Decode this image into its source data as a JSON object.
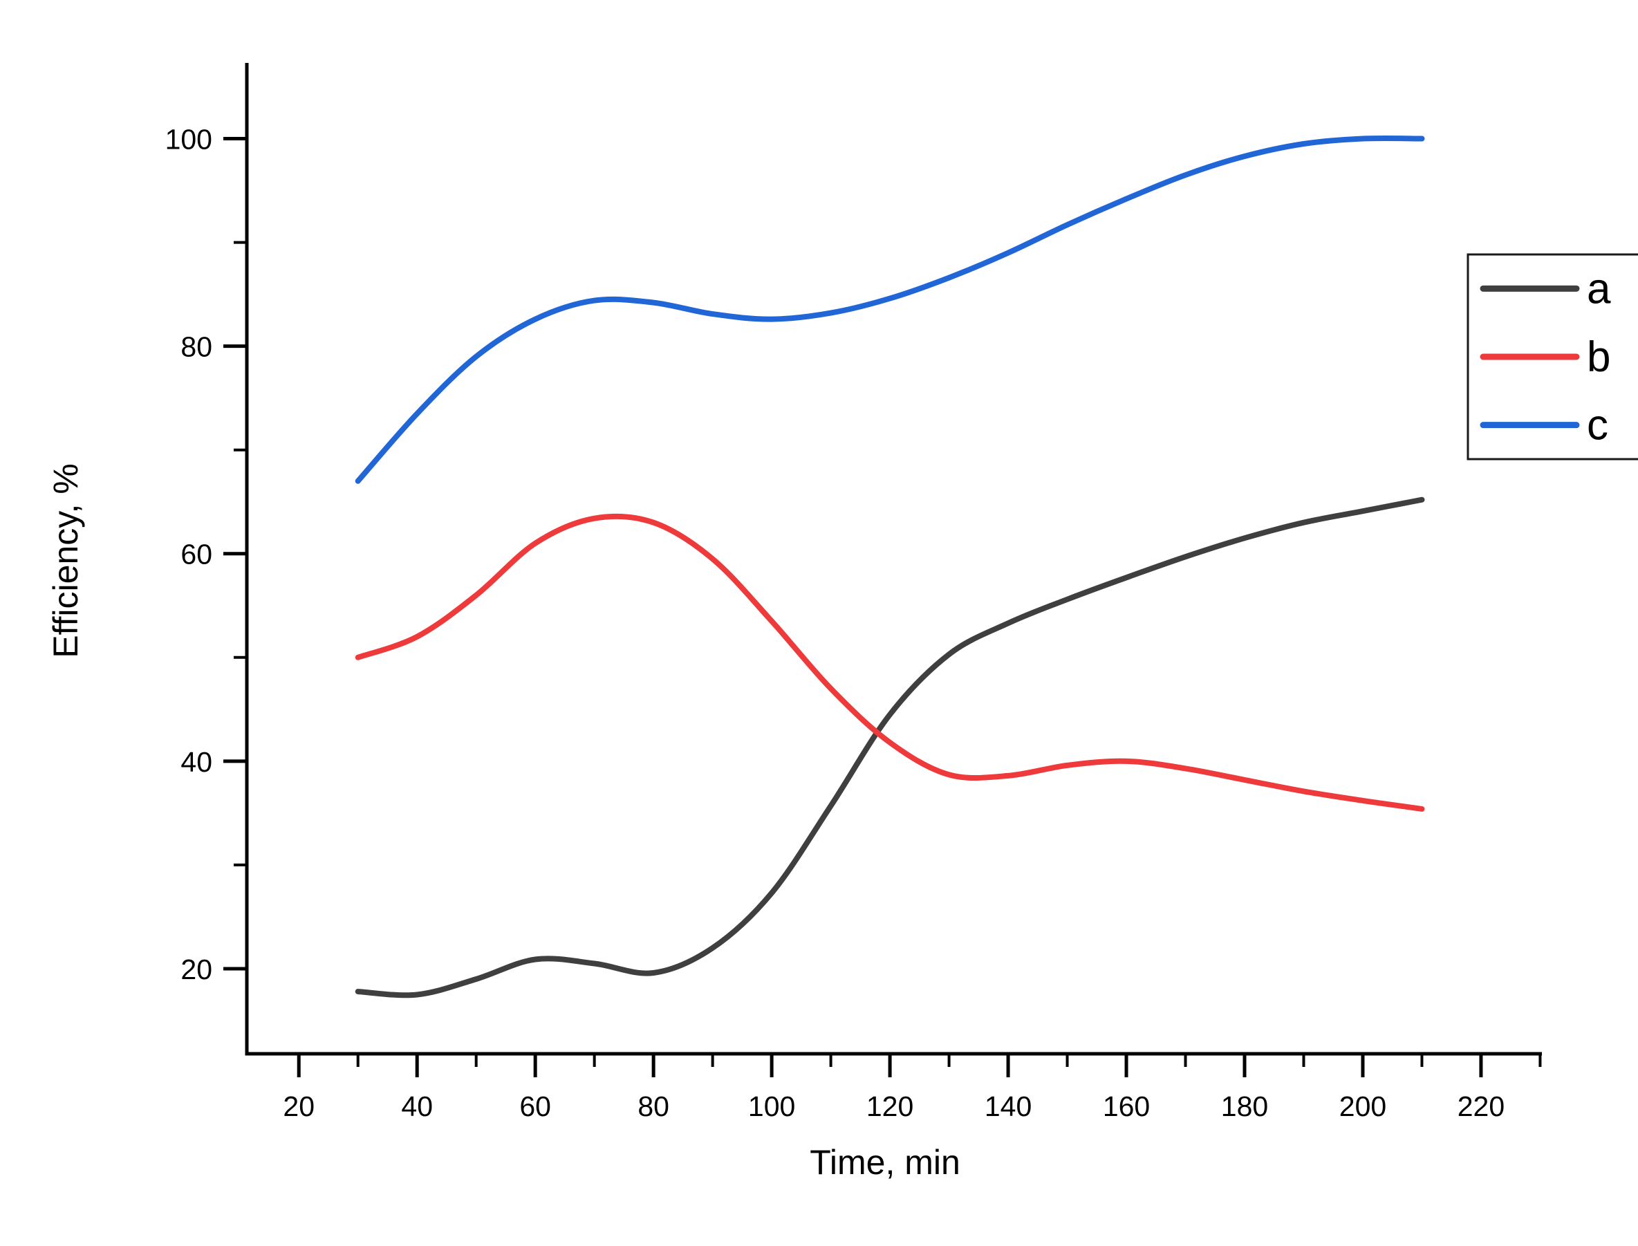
{
  "frame": {
    "background": "#ffffff",
    "axis_color": "#000000",
    "text_color": "#000000"
  },
  "chart_data": {
    "type": "line",
    "title": "",
    "xlabel": "Time, min",
    "ylabel": "Efficiency, %",
    "xlim": [
      11.2,
      230.3
    ],
    "ylim": [
      11.8,
      107.3
    ],
    "x_major_ticks": [
      20,
      40,
      60,
      80,
      100,
      120,
      140,
      160,
      180,
      200,
      220
    ],
    "x_minor_ticks": [
      30,
      50,
      70,
      90,
      110,
      130,
      150,
      170,
      190,
      210,
      230
    ],
    "y_major_ticks": [
      20,
      40,
      60,
      80,
      100
    ],
    "y_minor_ticks": [
      30,
      50,
      70,
      90
    ],
    "grid": false,
    "legend": {
      "position": "upper-right",
      "entries": [
        "a",
        "b",
        "c"
      ]
    },
    "x": [
      30,
      40,
      50,
      60,
      70,
      80,
      90,
      100,
      110,
      120,
      130,
      140,
      150,
      160,
      170,
      180,
      190,
      200,
      210
    ],
    "series": [
      {
        "name": "a",
        "color": "#3f3f3f",
        "values": [
          17.8,
          17.5,
          19.0,
          20.9,
          20.5,
          19.6,
          22.0,
          27.3,
          35.7,
          44.5,
          50.3,
          53.3,
          55.6,
          57.7,
          59.7,
          61.5,
          63.0,
          64.1,
          65.2
        ]
      },
      {
        "name": "b",
        "color": "#ee3a3b",
        "values": [
          50.0,
          52.0,
          56.0,
          61.0,
          63.4,
          63.0,
          59.5,
          53.5,
          47.0,
          41.8,
          38.7,
          38.6,
          39.6,
          40.0,
          39.3,
          38.2,
          37.1,
          36.2,
          35.4
        ]
      },
      {
        "name": "c",
        "color": "#2166d6",
        "values": [
          67.0,
          73.5,
          79.0,
          82.6,
          84.4,
          84.2,
          83.1,
          82.6,
          83.2,
          84.6,
          86.6,
          89.0,
          91.7,
          94.2,
          96.5,
          98.3,
          99.5,
          100.0,
          100.0
        ]
      }
    ]
  }
}
